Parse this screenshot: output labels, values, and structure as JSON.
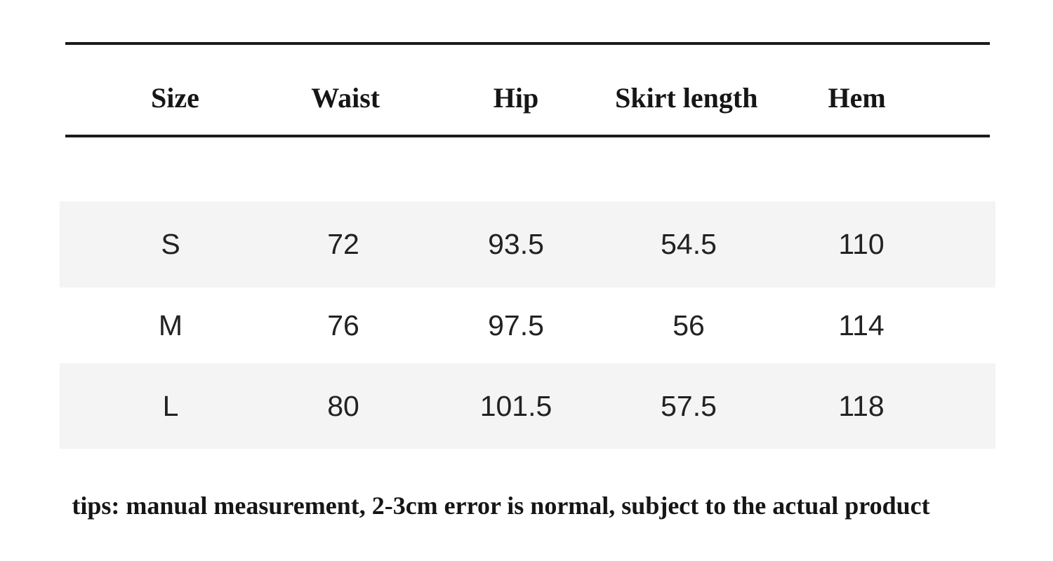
{
  "chart_data": {
    "type": "table",
    "title": "",
    "columns": [
      "Size",
      "Waist",
      "Hip",
      "Skirt length",
      "Hem"
    ],
    "rows": [
      [
        "S",
        "72",
        "93.5",
        "54.5",
        "110"
      ],
      [
        "M",
        "76",
        "97.5",
        "56",
        "114"
      ],
      [
        "L",
        "80",
        "101.5",
        "57.5",
        "118"
      ]
    ],
    "footnote": "tips: manual measurement, 2-3cm error is normal, subject to the actual product",
    "layout": {
      "stripe_rows": [
        "S",
        "L"
      ],
      "grid": "horizontal rules above and below header only"
    }
  },
  "colors": {
    "stripe": "#f4f4f4",
    "rule": "#1b1b1b",
    "header_text": "#161616",
    "data_text": "#222222",
    "background": "#ffffff"
  }
}
